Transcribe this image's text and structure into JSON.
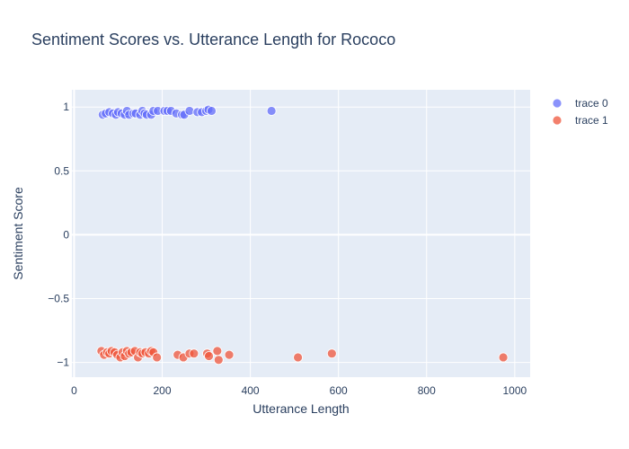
{
  "chart_data": {
    "type": "scatter",
    "title": "Sentiment Scores vs. Utterance Length for Rococo",
    "xlabel": "Utterance Length",
    "ylabel": "Sentiment Score",
    "xlim": [
      -5,
      1035
    ],
    "ylim": [
      -1.115,
      1.135
    ],
    "x_ticks": [
      0,
      200,
      400,
      600,
      800,
      1000
    ],
    "y_ticks": [
      -1,
      -0.5,
      0,
      0.5,
      1
    ],
    "y_tick_labels": [
      "−1",
      "−0.5",
      "0",
      "0.5",
      "1"
    ],
    "grid": true,
    "legend_position": "top-right",
    "series": [
      {
        "name": "trace 0",
        "color": "#636efa",
        "points": [
          {
            "x": 65,
            "y": 0.94
          },
          {
            "x": 72,
            "y": 0.95
          },
          {
            "x": 80,
            "y": 0.96
          },
          {
            "x": 88,
            "y": 0.95
          },
          {
            "x": 95,
            "y": 0.94
          },
          {
            "x": 100,
            "y": 0.96
          },
          {
            "x": 108,
            "y": 0.95
          },
          {
            "x": 115,
            "y": 0.94
          },
          {
            "x": 120,
            "y": 0.97
          },
          {
            "x": 125,
            "y": 0.94
          },
          {
            "x": 135,
            "y": 0.95
          },
          {
            "x": 140,
            "y": 0.95
          },
          {
            "x": 150,
            "y": 0.94
          },
          {
            "x": 155,
            "y": 0.97
          },
          {
            "x": 160,
            "y": 0.95
          },
          {
            "x": 165,
            "y": 0.94
          },
          {
            "x": 175,
            "y": 0.94
          },
          {
            "x": 180,
            "y": 0.97
          },
          {
            "x": 190,
            "y": 0.97
          },
          {
            "x": 205,
            "y": 0.97
          },
          {
            "x": 212,
            "y": 0.97
          },
          {
            "x": 220,
            "y": 0.97
          },
          {
            "x": 232,
            "y": 0.95
          },
          {
            "x": 245,
            "y": 0.94
          },
          {
            "x": 250,
            "y": 0.94
          },
          {
            "x": 262,
            "y": 0.97
          },
          {
            "x": 280,
            "y": 0.96
          },
          {
            "x": 290,
            "y": 0.96
          },
          {
            "x": 300,
            "y": 0.97
          },
          {
            "x": 305,
            "y": 0.98
          },
          {
            "x": 312,
            "y": 0.97
          },
          {
            "x": 448,
            "y": 0.97
          }
        ]
      },
      {
        "name": "trace 1",
        "color": "#ef553b",
        "points": [
          {
            "x": 62,
            "y": -0.91
          },
          {
            "x": 68,
            "y": -0.94
          },
          {
            "x": 75,
            "y": -0.92
          },
          {
            "x": 80,
            "y": -0.93
          },
          {
            "x": 85,
            "y": -0.91
          },
          {
            "x": 92,
            "y": -0.92
          },
          {
            "x": 98,
            "y": -0.94
          },
          {
            "x": 105,
            "y": -0.96
          },
          {
            "x": 110,
            "y": -0.92
          },
          {
            "x": 115,
            "y": -0.95
          },
          {
            "x": 120,
            "y": -0.91
          },
          {
            "x": 125,
            "y": -0.93
          },
          {
            "x": 130,
            "y": -0.92
          },
          {
            "x": 138,
            "y": -0.91
          },
          {
            "x": 145,
            "y": -0.96
          },
          {
            "x": 150,
            "y": -0.92
          },
          {
            "x": 155,
            "y": -0.93
          },
          {
            "x": 162,
            "y": -0.92
          },
          {
            "x": 170,
            "y": -0.93
          },
          {
            "x": 175,
            "y": -0.91
          },
          {
            "x": 180,
            "y": -0.92
          },
          {
            "x": 188,
            "y": -0.96
          },
          {
            "x": 235,
            "y": -0.94
          },
          {
            "x": 248,
            "y": -0.96
          },
          {
            "x": 262,
            "y": -0.93
          },
          {
            "x": 272,
            "y": -0.93
          },
          {
            "x": 302,
            "y": -0.93
          },
          {
            "x": 306,
            "y": -0.95
          },
          {
            "x": 325,
            "y": -0.91
          },
          {
            "x": 328,
            "y": -0.98
          },
          {
            "x": 352,
            "y": -0.94
          },
          {
            "x": 508,
            "y": -0.96
          },
          {
            "x": 585,
            "y": -0.93
          },
          {
            "x": 974,
            "y": -0.96
          }
        ]
      }
    ]
  }
}
